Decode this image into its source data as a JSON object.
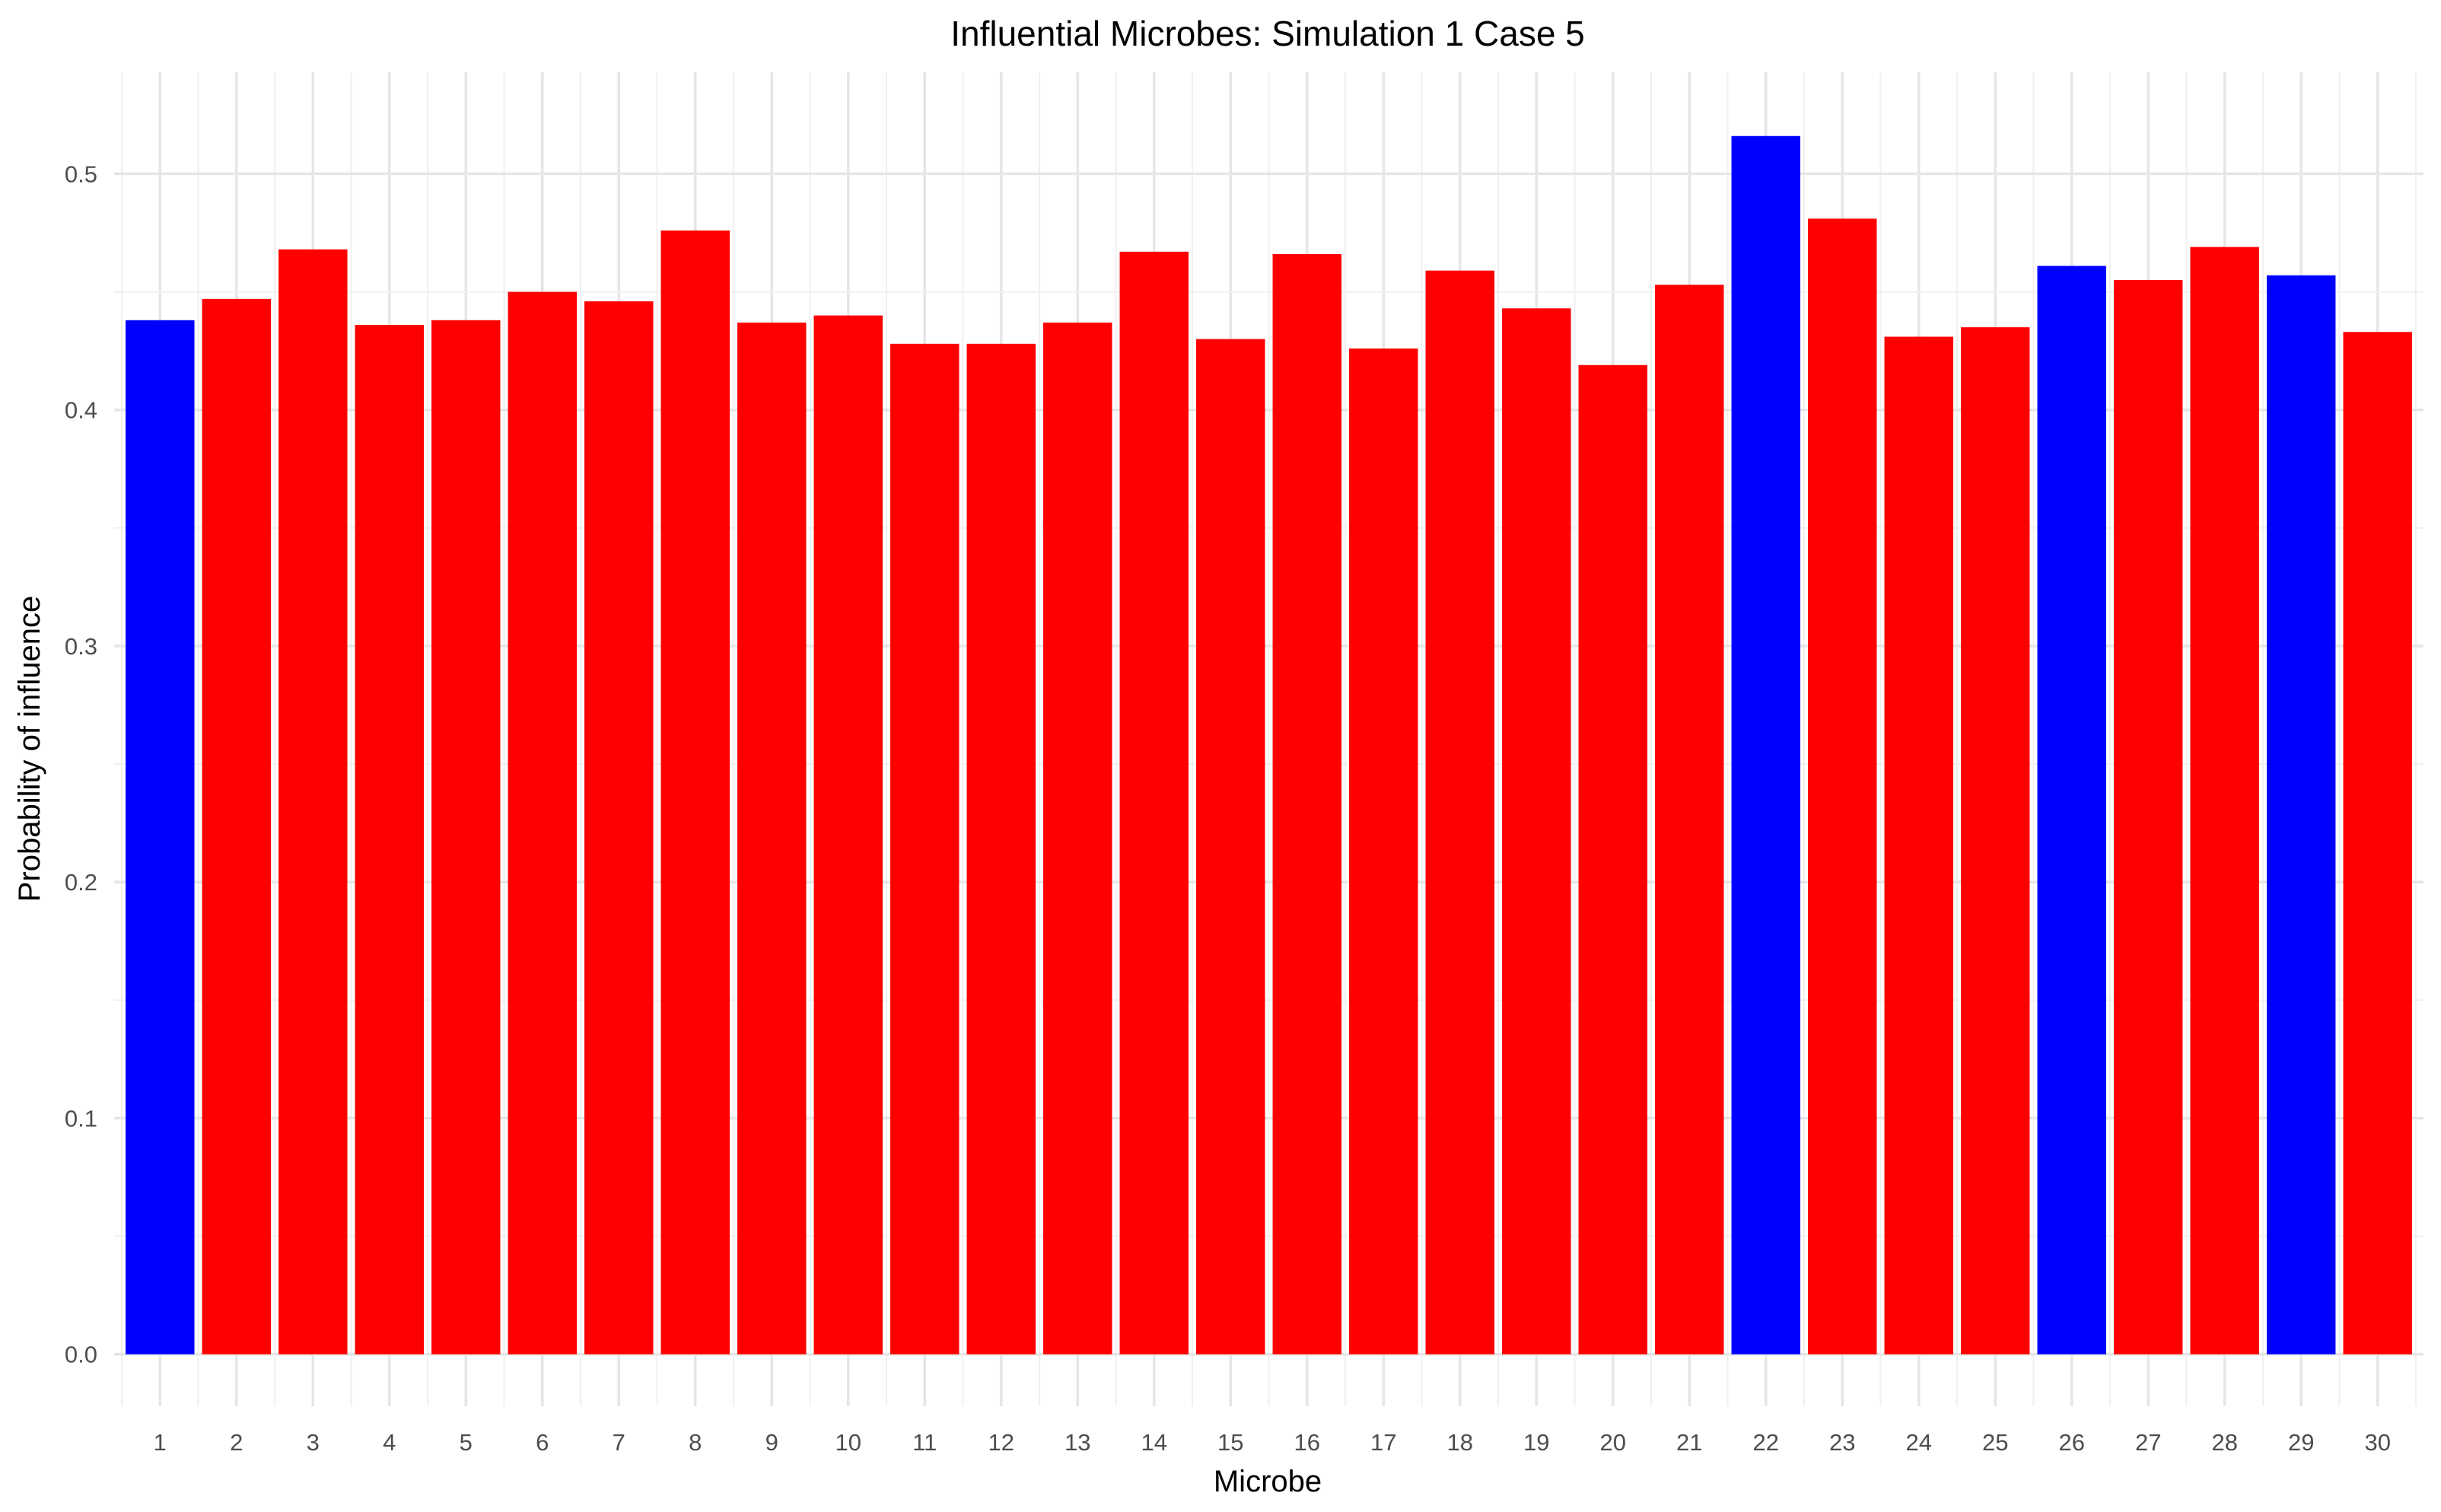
{
  "chart_data": {
    "type": "bar",
    "title": "Influential Microbes: Simulation 1 Case 5",
    "xlabel": "Microbe",
    "ylabel": "Probability of influence",
    "categories": [
      "1",
      "2",
      "3",
      "4",
      "5",
      "6",
      "7",
      "8",
      "9",
      "10",
      "11",
      "12",
      "13",
      "14",
      "15",
      "16",
      "17",
      "18",
      "19",
      "20",
      "21",
      "22",
      "23",
      "24",
      "25",
      "26",
      "27",
      "28",
      "29",
      "30"
    ],
    "values": [
      0.438,
      0.447,
      0.468,
      0.436,
      0.438,
      0.45,
      0.446,
      0.476,
      0.437,
      0.44,
      0.428,
      0.428,
      0.437,
      0.467,
      0.43,
      0.466,
      0.426,
      0.459,
      0.443,
      0.419,
      0.453,
      0.516,
      0.481,
      0.431,
      0.435,
      0.461,
      0.455,
      0.469,
      0.457,
      0.433
    ],
    "highlighted": [
      "1",
      "22",
      "26",
      "29"
    ],
    "colors": {
      "highlight": "#0000ff",
      "default": "#ff0000"
    },
    "yticks": [
      "0.0",
      "0.1",
      "0.2",
      "0.3",
      "0.4",
      "0.5"
    ],
    "ylim": [
      -0.022,
      0.543
    ],
    "grid": true,
    "legend": "none"
  }
}
